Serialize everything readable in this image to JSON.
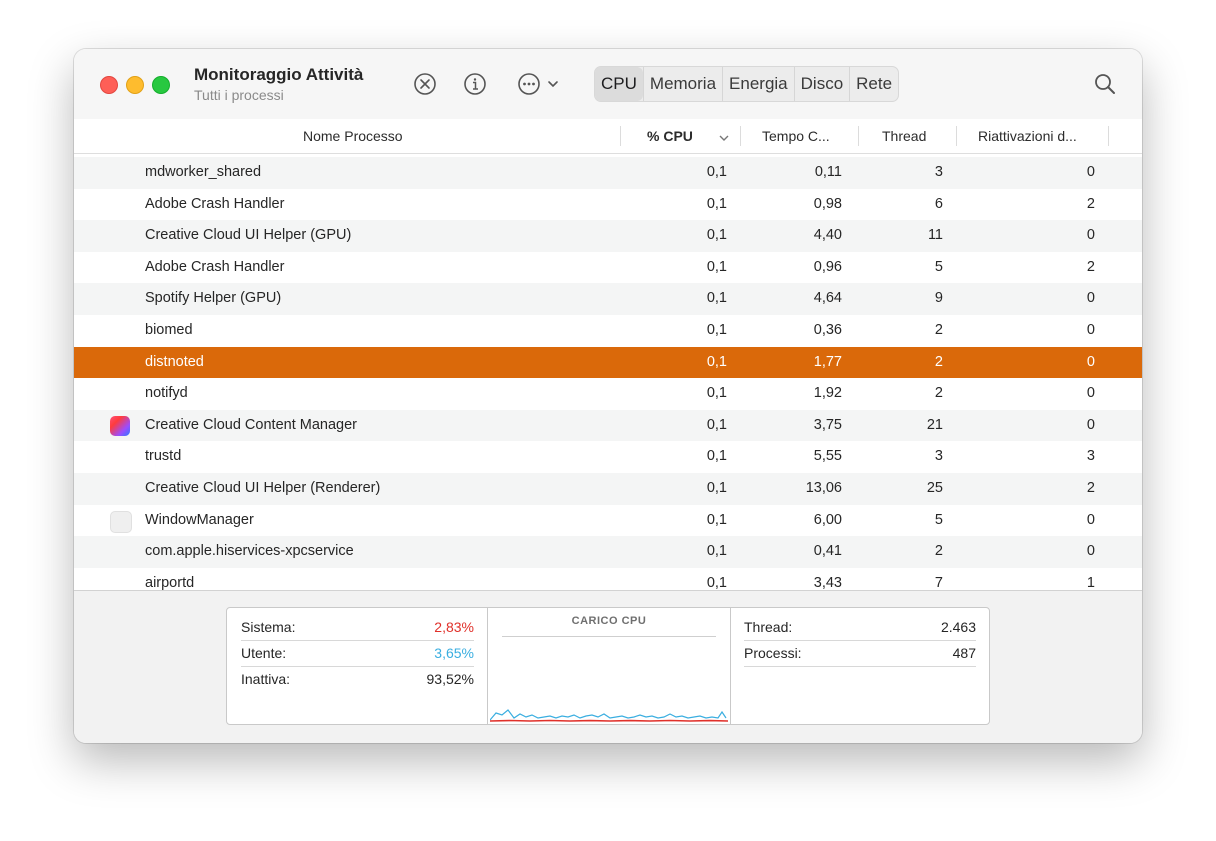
{
  "window": {
    "title": "Monitoraggio Attività",
    "subtitle": "Tutti i processi"
  },
  "toolbar": {
    "stop_icon": "stop-process-icon",
    "info_icon": "info-icon",
    "more_icon": "ellipsis-menu-icon",
    "search_icon": "search-icon",
    "tabs": [
      {
        "label": "CPU",
        "active": true
      },
      {
        "label": "Memoria",
        "active": false
      },
      {
        "label": "Energia",
        "active": false
      },
      {
        "label": "Disco",
        "active": false
      },
      {
        "label": "Rete",
        "active": false
      }
    ]
  },
  "table": {
    "columns": {
      "name": "Nome Processo",
      "cpu": "% CPU",
      "time": "Tempo C...",
      "threads": "Thread",
      "wakeups": "Riattivazioni d..."
    },
    "rows": [
      {
        "name": "mdworker_shared",
        "cpu": "0,1",
        "time": "0,11",
        "threads": "3",
        "wakeups": "0"
      },
      {
        "name": "Adobe Crash Handler",
        "cpu": "0,1",
        "time": "0,98",
        "threads": "6",
        "wakeups": "2"
      },
      {
        "name": "Creative Cloud UI Helper (GPU)",
        "cpu": "0,1",
        "time": "4,40",
        "threads": "11",
        "wakeups": "0"
      },
      {
        "name": "Adobe Crash Handler",
        "cpu": "0,1",
        "time": "0,96",
        "threads": "5",
        "wakeups": "2"
      },
      {
        "name": "Spotify Helper (GPU)",
        "cpu": "0,1",
        "time": "4,64",
        "threads": "9",
        "wakeups": "0"
      },
      {
        "name": "biomed",
        "cpu": "0,1",
        "time": "0,36",
        "threads": "2",
        "wakeups": "0"
      },
      {
        "name": "distnoted",
        "cpu": "0,1",
        "time": "1,77",
        "threads": "2",
        "wakeups": "0",
        "selected": true
      },
      {
        "name": "notifyd",
        "cpu": "0,1",
        "time": "1,92",
        "threads": "2",
        "wakeups": "0"
      },
      {
        "name": "Creative Cloud Content Manager",
        "cpu": "0,1",
        "time": "3,75",
        "threads": "21",
        "wakeups": "0",
        "icon": "creative-cloud-icon"
      },
      {
        "name": "trustd",
        "cpu": "0,1",
        "time": "5,55",
        "threads": "3",
        "wakeups": "3"
      },
      {
        "name": "Creative Cloud UI Helper (Renderer)",
        "cpu": "0,1",
        "time": "13,06",
        "threads": "25",
        "wakeups": "2"
      },
      {
        "name": "WindowManager",
        "cpu": "0,1",
        "time": "6,00",
        "threads": "5",
        "wakeups": "0",
        "icon": "window-manager-icon"
      },
      {
        "name": "com.apple.hiservices-xpcservice",
        "cpu": "0,1",
        "time": "0,41",
        "threads": "2",
        "wakeups": "0"
      },
      {
        "name": "airportd",
        "cpu": "0,1",
        "time": "3,43",
        "threads": "7",
        "wakeups": "1"
      }
    ]
  },
  "stats": {
    "system_label": "Sistema:",
    "system_value": "2,83%",
    "user_label": "Utente:",
    "user_value": "3,65%",
    "idle_label": "Inattiva:",
    "idle_value": "93,52%",
    "chart_title": "CARICO CPU",
    "threads_label": "Thread:",
    "threads_value": "2.463",
    "processes_label": "Processi:",
    "processes_value": "487"
  },
  "colors": {
    "selection": "#da690a",
    "system": "#e0302a",
    "user": "#3aaee0"
  }
}
